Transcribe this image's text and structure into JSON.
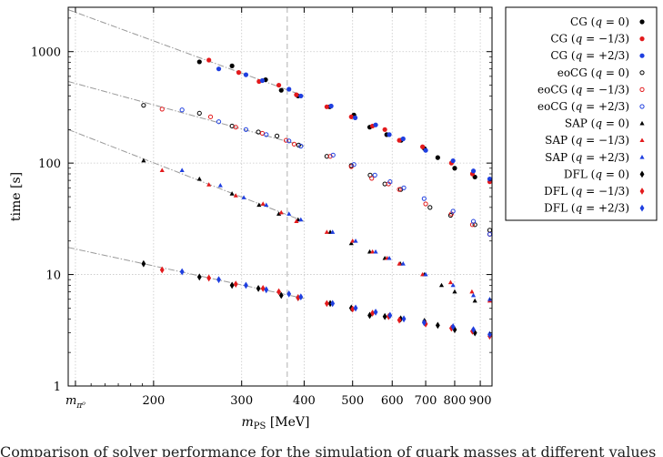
{
  "chart_data": {
    "type": "scatter",
    "xscale": "log",
    "yscale": "log",
    "xlim": [
      135,
      950
    ],
    "ylim": [
      1,
      2500
    ],
    "xlabel": "m_PS [MeV]",
    "ylabel": "time [s]",
    "xlabel_html": "m<tspan font-size='10' dy='3'>PS</tspan><tspan dy='-3'> [MeV]</tspan>",
    "xticks": [
      {
        "value": 139.57,
        "label": "m_π⁰"
      },
      {
        "value": 200,
        "label": "200"
      },
      {
        "value": 300,
        "label": "300"
      },
      {
        "value": 400,
        "label": "400"
      },
      {
        "value": 500,
        "label": "500"
      },
      {
        "value": 600,
        "label": "600"
      },
      {
        "value": 700,
        "label": "700"
      },
      {
        "value": 800,
        "label": "800"
      },
      {
        "value": 900,
        "label": "900"
      }
    ],
    "yticks": [
      {
        "value": 1,
        "label": "1"
      },
      {
        "value": 10,
        "label": "10"
      },
      {
        "value": 100,
        "label": "100"
      },
      {
        "value": 1000,
        "label": "1000"
      }
    ],
    "vline": 370,
    "grid": true,
    "legend_position": "outside-right",
    "colors": {
      "q0": "#000000",
      "qm13": "#e31a1c",
      "qp23": "#1f3fe0"
    },
    "fits": [
      {
        "name": "CG fit",
        "x": [
          135,
          400
        ],
        "y": [
          2380,
          400
        ]
      },
      {
        "name": "eoCG fit",
        "x": [
          135,
          400
        ],
        "y": [
          540,
          142
        ]
      },
      {
        "name": "SAP fit",
        "x": [
          135,
          400
        ],
        "y": [
          200,
          30
        ]
      },
      {
        "name": "DFL fit",
        "x": [
          135,
          400
        ],
        "y": [
          17.5,
          6.1
        ]
      }
    ],
    "series": [
      {
        "name": "CG (q = 0)",
        "legend": "CG",
        "q": "q = 0",
        "marker": "circle",
        "fill": true,
        "color": "q0",
        "x": [
          247,
          287,
          335,
          360,
          389,
          450,
          503,
          541,
          585,
          625,
          696,
          740,
          800,
          878
        ],
        "y": [
          810,
          745,
          560,
          450,
          400,
          320,
          270,
          210,
          180,
          160,
          135,
          112,
          90,
          75
        ]
      },
      {
        "name": "CG (q = −1/3)",
        "legend": "CG",
        "q": "q = −1/3",
        "marker": "circle",
        "fill": true,
        "color": "qm13",
        "x": [
          258,
          296,
          325,
          356,
          386,
          444,
          497,
          548,
          580,
          620,
          690,
          788,
          868,
          940
        ],
        "y": [
          840,
          650,
          540,
          500,
          410,
          320,
          260,
          215,
          200,
          160,
          140,
          100,
          80,
          68
        ]
      },
      {
        "name": "CG (q = +2/3)",
        "legend": "CG",
        "q": "q = +2/3",
        "marker": "circle",
        "fill": true,
        "color": "qp23",
        "x": [
          270,
          306,
          330,
          373,
          394,
          453,
          506,
          556,
          592,
          631,
          700,
          794,
          872,
          940
        ],
        "y": [
          700,
          620,
          550,
          460,
          400,
          325,
          255,
          220,
          180,
          165,
          130,
          105,
          85,
          72
        ]
      },
      {
        "name": "eoCG (q = 0)",
        "legend": "eoCG",
        "q": "q = 0",
        "marker": "circle",
        "fill": false,
        "color": "q0",
        "x": [
          191,
          247,
          287,
          324,
          353,
          390,
          444,
          497,
          542,
          580,
          624,
          714,
          785,
          878,
          940
        ],
        "y": [
          330,
          280,
          215,
          190,
          175,
          145,
          115,
          95,
          78,
          65,
          58,
          40,
          34,
          28,
          25
        ]
      },
      {
        "name": "eoCG (q = −1/3)",
        "legend": "eoCG",
        "q": "q = −1/3",
        "marker": "circle",
        "fill": false,
        "color": "qm13",
        "x": [
          208,
          260,
          292,
          330,
          368,
          382,
          451,
          497,
          546,
          590,
          620,
          700,
          788,
          868,
          940
        ],
        "y": [
          305,
          260,
          210,
          185,
          160,
          148,
          115,
          93,
          73,
          65,
          58,
          43,
          35,
          28,
          23
        ]
      },
      {
        "name": "eoCG (q = +2/3)",
        "legend": "eoCG",
        "q": "q = +2/3",
        "marker": "circle",
        "fill": false,
        "color": "qp23",
        "x": [
          228,
          270,
          306,
          336,
          373,
          394,
          457,
          503,
          554,
          594,
          633,
          695,
          794,
          872,
          940
        ],
        "y": [
          300,
          235,
          200,
          180,
          158,
          142,
          118,
          97,
          78,
          68,
          60,
          48,
          37,
          30,
          23
        ]
      },
      {
        "name": "SAP (q = 0)",
        "legend": "SAP",
        "q": "q = 0",
        "marker": "triangle",
        "fill": true,
        "color": "q0",
        "x": [
          191,
          247,
          287,
          325,
          356,
          389,
          451,
          497,
          541,
          580,
          623,
          696,
          753,
          800,
          878
        ],
        "y": [
          105,
          72,
          53,
          42,
          35,
          31,
          24,
          19,
          16,
          14,
          12.5,
          10,
          8,
          7,
          5.8
        ]
      },
      {
        "name": "SAP (q = −1/3)",
        "legend": "SAP",
        "q": "q = −1/3",
        "marker": "triangle",
        "fill": true,
        "color": "qm13",
        "x": [
          208,
          258,
          292,
          331,
          360,
          386,
          444,
          500,
          548,
          586,
          620,
          690,
          785,
          866,
          940
        ],
        "y": [
          86,
          64,
          51,
          43,
          36,
          30,
          24,
          20,
          16,
          14,
          12.5,
          10,
          8.5,
          7,
          5.8
        ]
      },
      {
        "name": "SAP (q = +2/3)",
        "legend": "SAP",
        "q": "q = +2/3",
        "marker": "triangle",
        "fill": true,
        "color": "qp23",
        "x": [
          228,
          272,
          303,
          336,
          373,
          394,
          456,
          507,
          556,
          592,
          631,
          700,
          794,
          872,
          940
        ],
        "y": [
          86,
          63,
          49,
          42,
          35,
          31,
          24,
          20,
          16,
          14,
          12.5,
          10,
          8,
          6.5,
          6
        ]
      },
      {
        "name": "DFL (q = 0)",
        "legend": "DFL",
        "q": "q = 0",
        "marker": "diamond",
        "fill": true,
        "color": "q0",
        "x": [
          191,
          247,
          287,
          324,
          360,
          389,
          451,
          497,
          541,
          580,
          624,
          696,
          740,
          800,
          878
        ],
        "y": [
          12.5,
          9.5,
          8,
          7.5,
          6.5,
          6.2,
          5.5,
          5,
          4.3,
          4.2,
          4,
          3.8,
          3.5,
          3.2,
          3
        ]
      },
      {
        "name": "DFL (q = −1/3)",
        "legend": "DFL",
        "q": "q = −1/3",
        "marker": "diamond",
        "fill": true,
        "color": "qm13",
        "x": [
          208,
          258,
          292,
          331,
          356,
          389,
          444,
          500,
          548,
          590,
          620,
          700,
          788,
          868,
          940
        ],
        "y": [
          11,
          9.3,
          8.2,
          7.5,
          7,
          6.2,
          5.5,
          4.9,
          4.5,
          4.2,
          3.9,
          3.6,
          3.3,
          3.1,
          2.8
        ]
      },
      {
        "name": "DFL (q = +2/3)",
        "legend": "DFL",
        "q": "q = +2/3",
        "marker": "diamond",
        "fill": true,
        "color": "qp23",
        "x": [
          228,
          270,
          306,
          336,
          373,
          394,
          456,
          507,
          556,
          594,
          633,
          695,
          794,
          872,
          940
        ],
        "y": [
          10.6,
          9,
          8,
          7.3,
          6.7,
          6.3,
          5.5,
          5,
          4.6,
          4.3,
          4,
          3.7,
          3.4,
          3.2,
          2.9
        ]
      }
    ]
  },
  "caption": "Comparison of solver performance for the simulation of quark masses at different values"
}
